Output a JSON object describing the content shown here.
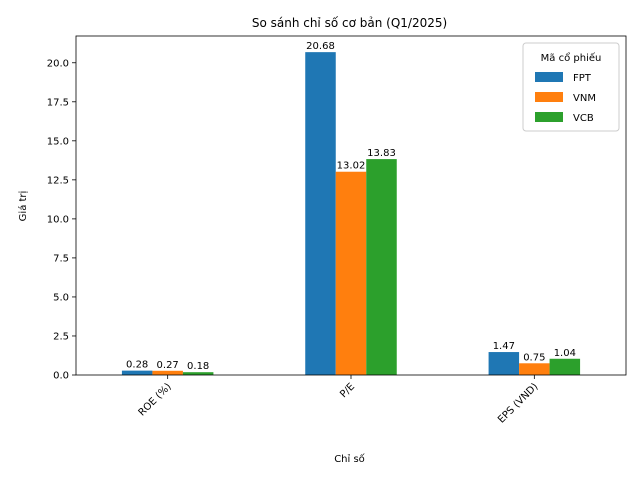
{
  "chart_data": {
    "type": "bar",
    "title": "So sánh chỉ số cơ bản (Q1/2025)",
    "xlabel": "Chỉ số",
    "ylabel": "Giá trị",
    "categories": [
      "ROE (%)",
      "P/E",
      "EPS (VND)"
    ],
    "series": [
      {
        "name": "FPT",
        "values": [
          0.28,
          20.68,
          1.47
        ],
        "color": "#1f77b4"
      },
      {
        "name": "VNM",
        "values": [
          0.27,
          13.02,
          0.75
        ],
        "color": "#ff7f0e"
      },
      {
        "name": "VCB",
        "values": [
          0.18,
          13.83,
          1.04
        ],
        "color": "#2ca02c"
      }
    ],
    "value_labels": [
      [
        "0.28",
        "20.68",
        "1.47"
      ],
      [
        "0.27",
        "13.02",
        "0.75"
      ],
      [
        "0.18",
        "13.83",
        "1.04"
      ]
    ],
    "ylim": [
      0,
      21.714
    ],
    "yticks": [
      0,
      2.5,
      5,
      7.5,
      10,
      12.5,
      15,
      17.5,
      20
    ],
    "ytick_labels": [
      "0.0",
      "2.5",
      "5.0",
      "7.5",
      "10.0",
      "12.5",
      "15.0",
      "17.5",
      "20.0"
    ],
    "legend_title": "Mã cổ phiếu",
    "legend_position": "top-right",
    "grid": false
  }
}
